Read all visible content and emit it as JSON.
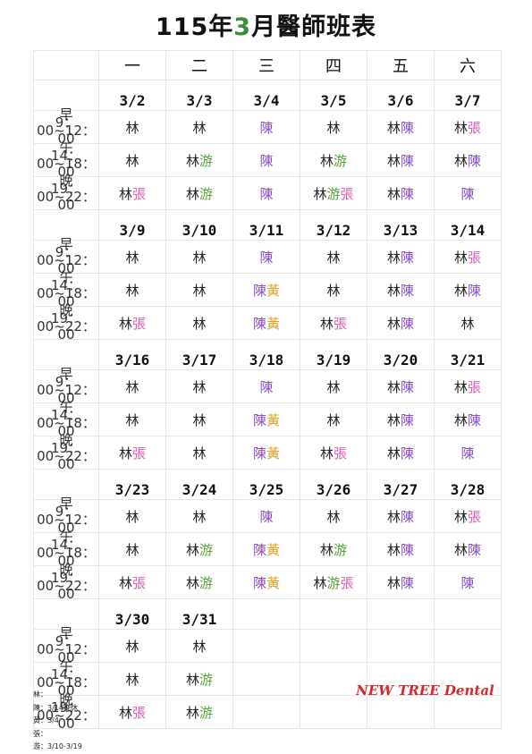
{
  "title": {
    "prefix": "115年",
    "month": "3",
    "suffix": "月醫師班表"
  },
  "weekdays": [
    "一",
    "二",
    "三",
    "四",
    "五",
    "六"
  ],
  "slots": [
    {
      "name": "早",
      "time": "9：00~12：00"
    },
    {
      "name": "午",
      "time": "14：00~18：00"
    },
    {
      "name": "晚",
      "time": "19：00~22：00"
    }
  ],
  "colors": {
    "林": "#222222",
    "陳": "#8a4fc9",
    "張": "#e05bb6",
    "游": "#58a23a",
    "黃": "#e8a021"
  },
  "weeks": [
    {
      "dates": [
        "3/2",
        "3/3",
        "3/4",
        "3/5",
        "3/6",
        "3/7"
      ],
      "rows": [
        [
          "林",
          "林",
          "陳",
          "林",
          "林陳",
          "林張"
        ],
        [
          "林",
          "林游",
          "陳",
          "林游",
          "林陳",
          "林陳"
        ],
        [
          "林張",
          "林游",
          "陳",
          "林游張",
          "林陳",
          "陳"
        ]
      ]
    },
    {
      "dates": [
        "3/9",
        "3/10",
        "3/11",
        "3/12",
        "3/13",
        "3/14"
      ],
      "rows": [
        [
          "林",
          "林",
          "陳",
          "林",
          "林陳",
          "林張"
        ],
        [
          "林",
          "林",
          "陳黃",
          "林",
          "林陳",
          "林陳"
        ],
        [
          "林張",
          "林",
          "陳黃",
          "林張",
          "林陳",
          "林"
        ]
      ]
    },
    {
      "dates": [
        "3/16",
        "3/17",
        "3/18",
        "3/19",
        "3/20",
        "3/21"
      ],
      "rows": [
        [
          "林",
          "林",
          "陳",
          "林",
          "林陳",
          "林張"
        ],
        [
          "林",
          "林",
          "陳黃",
          "林",
          "林陳",
          "林陳"
        ],
        [
          "林張",
          "林",
          "陳黃",
          "林張",
          "林陳",
          "陳"
        ]
      ]
    },
    {
      "dates": [
        "3/23",
        "3/24",
        "3/25",
        "3/26",
        "3/27",
        "3/28"
      ],
      "rows": [
        [
          "林",
          "林",
          "陳",
          "林",
          "林陳",
          "林張"
        ],
        [
          "林",
          "林游",
          "陳黃",
          "林游",
          "林陳",
          "林陳"
        ],
        [
          "林張",
          "林游",
          "陳黃",
          "林游張",
          "林陳",
          "陳"
        ]
      ]
    },
    {
      "dates": [
        "3/30",
        "3/31",
        "",
        "",
        "",
        ""
      ],
      "rows": [
        [
          "林",
          "林",
          "",
          "",
          "",
          ""
        ],
        [
          "林",
          "林游",
          "",
          "",
          "",
          ""
        ],
        [
          "林張",
          "林游",
          "",
          "",
          "",
          ""
        ]
      ]
    }
  ],
  "notes": [
    "林：",
    "陳：3/14晚休",
    "黃：3/4",
    "張：",
    "游：3/10-3/19"
  ],
  "brand": "NEW TREE Dental"
}
